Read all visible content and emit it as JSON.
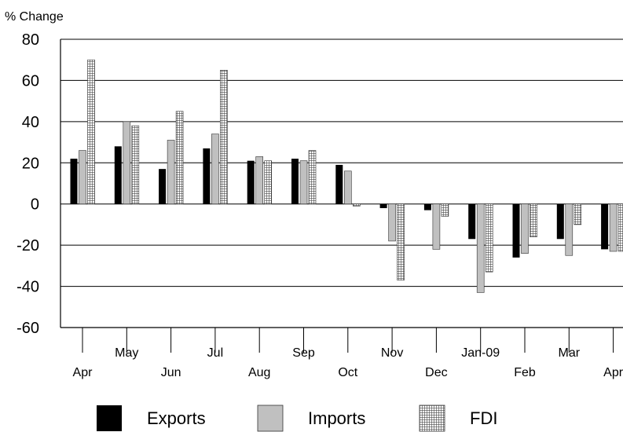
{
  "chart_data": {
    "type": "bar",
    "title": "",
    "xlabel": "",
    "ylabel": "% Change",
    "ylim": [
      -60,
      80
    ],
    "yticks": [
      80,
      60,
      40,
      20,
      0,
      -20,
      -40,
      -60
    ],
    "grid": true,
    "legend_position": "bottom",
    "categories": [
      "Apr",
      "May",
      "Jun",
      "Jul",
      "Aug",
      "Sep",
      "Oct",
      "Nov",
      "Dec",
      "Jan-09",
      "Feb",
      "Mar",
      "Apr"
    ],
    "series": [
      {
        "name": "Exports",
        "color": "#000000",
        "pattern": "solid",
        "values": [
          22,
          28,
          17,
          27,
          21,
          22,
          19,
          -2,
          -3,
          -17,
          -26,
          -17,
          -22
        ]
      },
      {
        "name": "Imports",
        "color": "#c0c0c0",
        "pattern": "solid",
        "values": [
          26,
          40,
          31,
          34,
          23,
          21,
          16,
          -18,
          -22,
          -43,
          -24,
          -25,
          -23
        ]
      },
      {
        "name": "FDI",
        "color": "#9a9a9a",
        "pattern": "grid",
        "values": [
          70,
          38,
          45,
          65,
          21,
          26,
          -1,
          -37,
          -6,
          -33,
          -16,
          -10,
          -23
        ]
      }
    ]
  }
}
